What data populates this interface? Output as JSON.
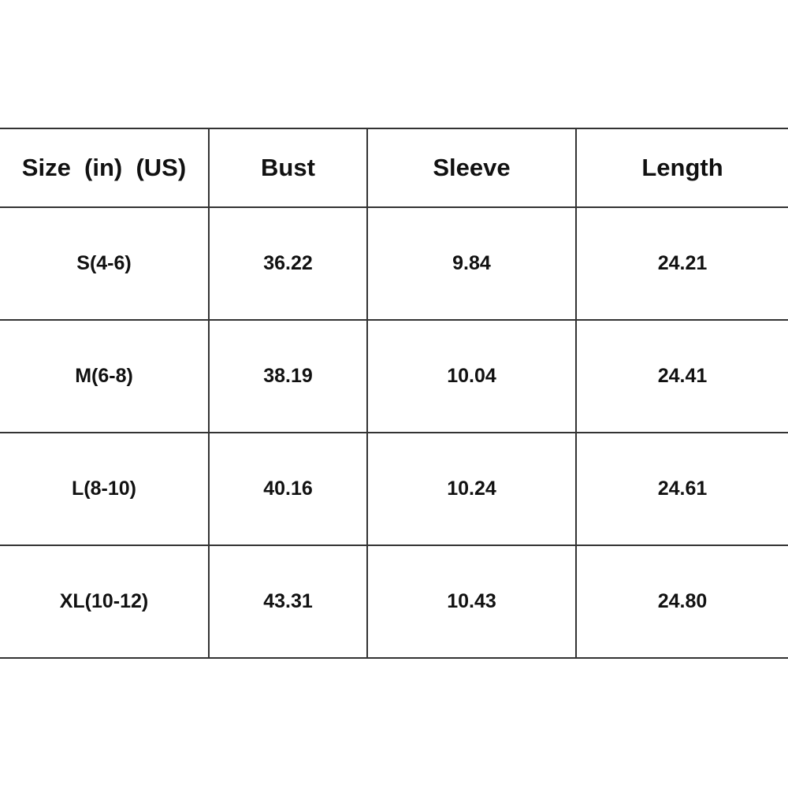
{
  "table": {
    "header": [
      "Size  (in)  (US)",
      "Bust",
      "Sleeve",
      "Length"
    ],
    "rows": [
      [
        "S(4-6)",
        "36.22",
        "9.84",
        "24.21"
      ],
      [
        "M(6-8)",
        "38.19",
        "10.04",
        "24.41"
      ],
      [
        "L(8-10)",
        "40.16",
        "10.24",
        "24.61"
      ],
      [
        "XL(10-12)",
        "43.31",
        "10.43",
        "24.80"
      ]
    ]
  }
}
